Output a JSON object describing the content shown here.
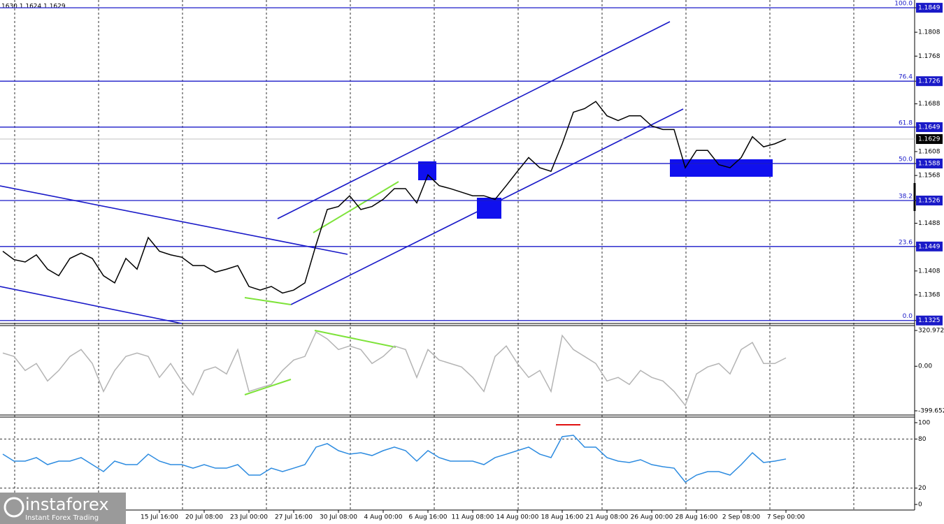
{
  "header": "1630 1.1624 1.1629",
  "logo": {
    "name": "instaforex",
    "tagline": "Instant Forex Trading"
  },
  "chart_data": [
    {
      "type": "line",
      "color": "#000000",
      "categories": [
        null,
        null,
        null,
        null,
        null,
        null,
        null,
        null,
        null,
        null,
        null,
        null,
        null,
        null,
        "15 Jul 16:00",
        null,
        null,
        null,
        "20 Jul 08:00",
        null,
        null,
        null,
        "23 Jul 00:00",
        null,
        null,
        null,
        "27 Jul 16:00",
        null,
        null,
        null,
        "30 Jul 08:00",
        null,
        null,
        null,
        "4 Aug 00:00",
        null,
        null,
        null,
        "6 Aug 16:00",
        null,
        null,
        null,
        "11 Aug 08:00",
        null,
        null,
        null,
        "14 Aug 00:00",
        null,
        null,
        null,
        "18 Aug 16:00",
        null,
        null,
        null,
        "21 Aug 08:00",
        null,
        null,
        null,
        "26 Aug 00:00",
        null,
        null,
        null,
        "28 Aug 16:00",
        null,
        null,
        null,
        "2 Sep 08:00",
        null,
        null,
        null,
        "7 Sep 00:00"
      ],
      "values": [
        1.1441,
        1.1427,
        1.1423,
        1.1435,
        1.1411,
        1.14,
        1.1429,
        1.1438,
        1.1429,
        1.14,
        1.1388,
        1.1429,
        1.1411,
        1.1464,
        1.1441,
        1.1435,
        1.1431,
        1.1417,
        1.1417,
        1.1406,
        1.1411,
        1.1417,
        1.1382,
        1.1376,
        1.1382,
        1.1371,
        1.1376,
        1.1388,
        1.1452,
        1.1511,
        1.1516,
        1.1534,
        1.1511,
        1.1516,
        1.1528,
        1.1546,
        1.1546,
        1.1522,
        1.1569,
        1.1551,
        1.1546,
        1.154,
        1.1534,
        1.1534,
        1.1528,
        1.1551,
        1.1575,
        1.1598,
        1.1581,
        1.1575,
        1.1621,
        1.1674,
        1.168,
        1.1692,
        1.1668,
        1.166,
        1.1668,
        1.1668,
        1.1651,
        1.1645,
        1.1645,
        1.1581,
        1.161,
        1.161,
        1.1586,
        1.1581,
        1.1598,
        1.1633,
        1.1616,
        1.1621,
        1.1629
      ],
      "ylim": [
        1.132,
        1.1862
      ],
      "yticks": [
        1.1849,
        1.1808,
        1.1768,
        1.1726,
        1.1688,
        1.1649,
        1.1608,
        1.1588,
        1.1568,
        1.1526,
        1.1488,
        1.1449,
        1.1408,
        1.1368,
        1.1325
      ],
      "last_price": 1.1629,
      "levels": [
        {
          "value": 1.1849,
          "label": "100.0"
        },
        {
          "value": 1.1726,
          "label": "76.4"
        },
        {
          "value": 1.1649,
          "label": "61.8"
        },
        {
          "value": 1.1588,
          "label": "50.0"
        },
        {
          "value": 1.1526,
          "label": "38.2"
        },
        {
          "value": 1.1449,
          "label": "23.6"
        },
        {
          "value": 1.1325,
          "label": "0.0"
        }
      ]
    },
    {
      "type": "line",
      "color": "#b4b4b4",
      "values": [
        119,
        88,
        -38,
        25,
        -132,
        -38,
        88,
        150,
        25,
        -226,
        -38,
        88,
        119,
        88,
        -100,
        25,
        -132,
        -257,
        -38,
        -6,
        -69,
        150,
        -226,
        -194,
        -163,
        -38,
        56,
        88,
        307,
        245,
        150,
        182,
        150,
        25,
        88,
        182,
        150,
        -100,
        150,
        56,
        25,
        -6,
        -100,
        -226,
        88,
        182,
        25,
        -100,
        -38,
        -226,
        276,
        150,
        88,
        25,
        -132,
        -100,
        -163,
        -38,
        -100,
        -132,
        -226,
        -351,
        -69,
        -6,
        25,
        -69,
        150,
        213,
        25,
        25,
        75
      ],
      "ylim": [
        -424.7,
        364.9
      ],
      "yticks": [
        320.9724,
        {
          "value": 0,
          "label": "0.00"
        },
        -399.652
      ]
    },
    {
      "type": "line",
      "color": "#2c8be0",
      "values": [
        61.5,
        53.0,
        53.0,
        57.3,
        48.7,
        53.0,
        53.0,
        57.3,
        48.7,
        40.2,
        53.0,
        48.7,
        48.7,
        61.5,
        53.0,
        48.7,
        48.7,
        44.4,
        48.7,
        44.4,
        44.4,
        48.7,
        35.9,
        35.9,
        44.4,
        40.2,
        44.4,
        48.7,
        70.1,
        74.4,
        65.8,
        61.5,
        63.2,
        59.8,
        65.8,
        70.1,
        65.8,
        53.0,
        65.8,
        57.3,
        53.0,
        53.0,
        53.0,
        48.7,
        57.3,
        61.5,
        65.8,
        70.1,
        61.5,
        57.3,
        82.9,
        84.6,
        70.1,
        70.1,
        57.3,
        53.0,
        51.3,
        54.7,
        48.7,
        46.2,
        44.4,
        27.4,
        35.9,
        40.2,
        40.2,
        35.9,
        48.7,
        63.2,
        51.3,
        53.0,
        55.6
      ],
      "ylim": [
        -6.8,
        106.8
      ],
      "yticks": [
        100,
        80,
        20,
        0
      ],
      "levels": [
        80,
        20
      ]
    }
  ]
}
